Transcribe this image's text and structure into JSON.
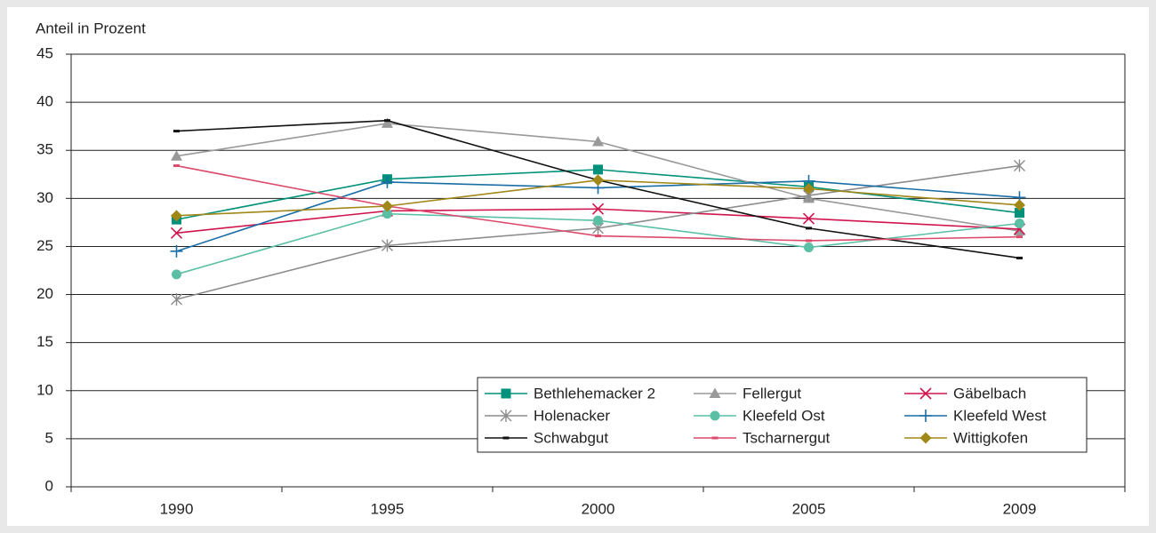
{
  "chart_data": {
    "type": "line",
    "y_label": "Anteil in Prozent",
    "categories": [
      "1990",
      "1995",
      "2000",
      "2005",
      "2009"
    ],
    "ylim": [
      0,
      45
    ],
    "yticks": [
      0,
      5,
      10,
      15,
      20,
      25,
      30,
      35,
      40,
      45
    ],
    "grid": true,
    "legend": "bottom-right",
    "series": [
      {
        "name": "Bethlehemacker 2",
        "color": "#00917a",
        "marker": "square",
        "values": [
          27.8,
          32.0,
          33.0,
          31.2,
          28.5
        ]
      },
      {
        "name": "Fellergut",
        "color": "#999999",
        "marker": "triangle",
        "values": [
          34.4,
          37.8,
          35.9,
          30.0,
          26.6
        ]
      },
      {
        "name": "Gäbelbach",
        "color": "#d0154e",
        "marker": "x",
        "values": [
          26.4,
          28.7,
          28.9,
          27.9,
          26.8
        ]
      },
      {
        "name": "Holenacker",
        "color": "#8c8c8c",
        "marker": "star",
        "values": [
          19.5,
          25.1,
          26.9,
          30.3,
          33.4
        ]
      },
      {
        "name": "Kleefeld Ost",
        "color": "#5bbfa6",
        "marker": "circle",
        "values": [
          22.1,
          28.4,
          27.7,
          24.9,
          27.4
        ]
      },
      {
        "name": "Kleefeld West",
        "color": "#1a6ea6",
        "marker": "plus",
        "values": [
          24.5,
          31.7,
          31.1,
          31.8,
          30.1
        ]
      },
      {
        "name": "Schwabgut",
        "color": "#111111",
        "marker": "dash",
        "values": [
          37.0,
          38.1,
          31.9,
          26.9,
          23.8
        ]
      },
      {
        "name": "Tscharnergut",
        "color": "#dc4a6c",
        "marker": "dash",
        "values": [
          33.4,
          29.2,
          26.1,
          25.6,
          26.0
        ]
      },
      {
        "name": "Wittigkofen",
        "color": "#a08718",
        "marker": "diamond",
        "values": [
          28.2,
          29.2,
          31.9,
          31.0,
          29.3
        ]
      }
    ]
  }
}
